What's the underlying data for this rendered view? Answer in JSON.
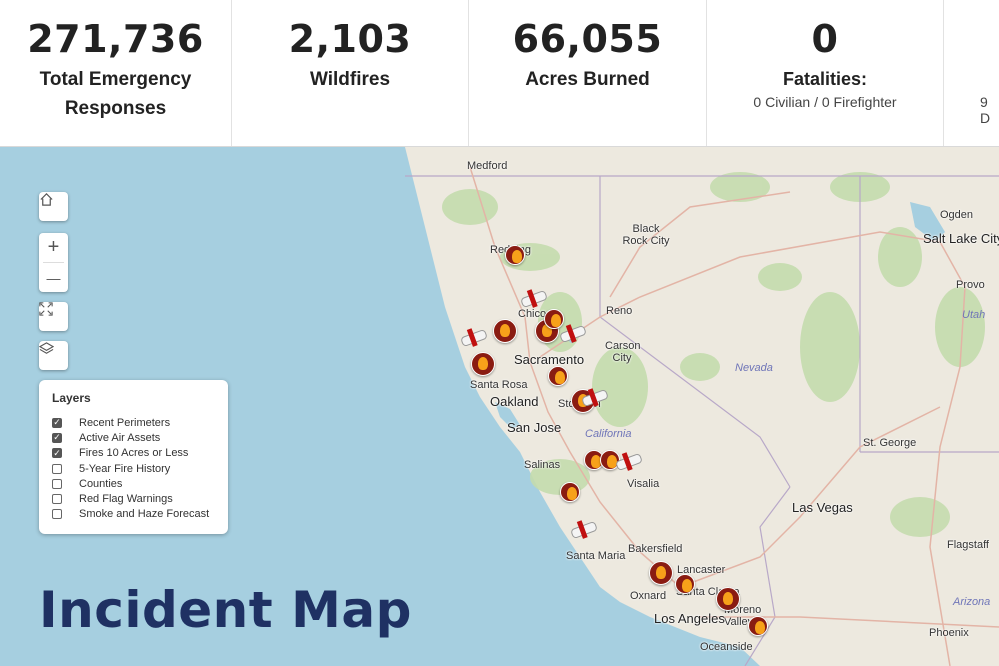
{
  "stats": [
    {
      "value": "271,736",
      "label": "Total Emergency Responses",
      "sub": ""
    },
    {
      "value": "2,103",
      "label": "Wildfires",
      "sub": ""
    },
    {
      "value": "66,055",
      "label": "Acres Burned",
      "sub": ""
    },
    {
      "value": "0",
      "label": "Fatalities:",
      "sub": "0 Civilian / 0 Firefighter"
    },
    {
      "value": "",
      "label": "",
      "sub": "9 D"
    }
  ],
  "map": {
    "title": "Incident Map",
    "controls": {
      "home_icon": "home-icon",
      "zoom_in": "+",
      "zoom_out": "—",
      "fullscreen_icon": "expand-icon",
      "layers_icon": "layers-icon"
    },
    "layer_panel": {
      "title": "Layers",
      "items": [
        {
          "label": "Recent Perimeters",
          "checked": true
        },
        {
          "label": "Active Air Assets",
          "checked": true
        },
        {
          "label": "Fires 10 Acres or Less",
          "checked": true
        },
        {
          "label": "5-Year Fire History",
          "checked": false
        },
        {
          "label": "Counties",
          "checked": false
        },
        {
          "label": "Red Flag Warnings",
          "checked": false
        },
        {
          "label": "Smoke and Haze Forecast",
          "checked": false
        }
      ]
    },
    "cities": [
      "Medford",
      "Black Rock City",
      "Ogden",
      "Salt Lake City",
      "Redding",
      "Provo",
      "Reno",
      "Chico",
      "Carson City",
      "Sacramento",
      "Santa Rosa",
      "Oakland",
      "Stockton",
      "San Jose",
      "Salinas",
      "Visalia",
      "St. George",
      "Las Vegas",
      "Santa Maria",
      "Bakersfield",
      "Flagstaff",
      "Lancaster",
      "Oxnard",
      "Santa Clarita",
      "Moreno Valley",
      "Los Angeles",
      "Oceanside",
      "Phoenix"
    ],
    "states": [
      "Utah",
      "Nevada",
      "California",
      "Arizona"
    ]
  }
}
